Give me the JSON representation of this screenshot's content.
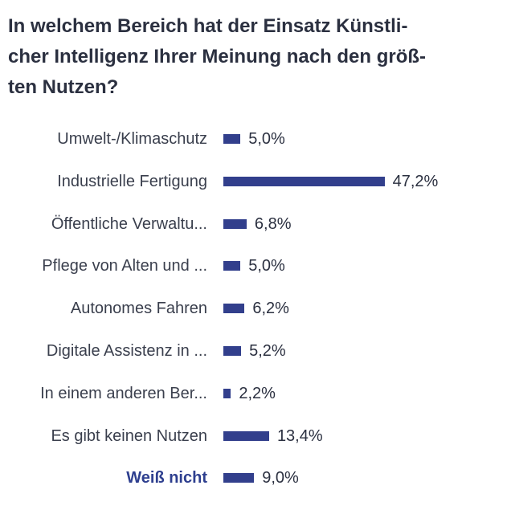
{
  "title_lines": [
    "In welchem Bereich hat der Einsatz Künstli-",
    "cher Intelligenz Ihrer Meinung nach den größ-",
    "ten Nutzen?"
  ],
  "colors": {
    "bar": "#323f8c",
    "label": "#3a3f4d",
    "highlight_label": "#2e3f8f",
    "title": "#2b3040"
  },
  "chart_data": {
    "type": "bar",
    "orientation": "horizontal",
    "title": "In welchem Bereich hat der Einsatz Künstlicher Intelligenz Ihrer Meinung nach den größten Nutzen?",
    "categories": [
      "Umwelt-/Klimaschutz",
      "Industrielle Fertigung",
      "Öffentliche Verwaltu...",
      "Pflege von Alten und ...",
      "Autonomes Fahren",
      "Digitale Assistenz in ...",
      "In einem anderen Ber...",
      "Es gibt keinen Nutzen",
      "Weiß nicht"
    ],
    "values": [
      5.0,
      47.2,
      6.8,
      5.0,
      6.2,
      5.2,
      2.2,
      13.4,
      9.0
    ],
    "value_labels": [
      "5,0%",
      "47,2%",
      "6,8%",
      "5,0%",
      "6,2%",
      "5,2%",
      "2,2%",
      "13,4%",
      "9,0%"
    ],
    "unit": "%",
    "highlighted_category": "Weiß nicht",
    "xlim": [
      0,
      50
    ],
    "grid": false,
    "legend": "none"
  }
}
